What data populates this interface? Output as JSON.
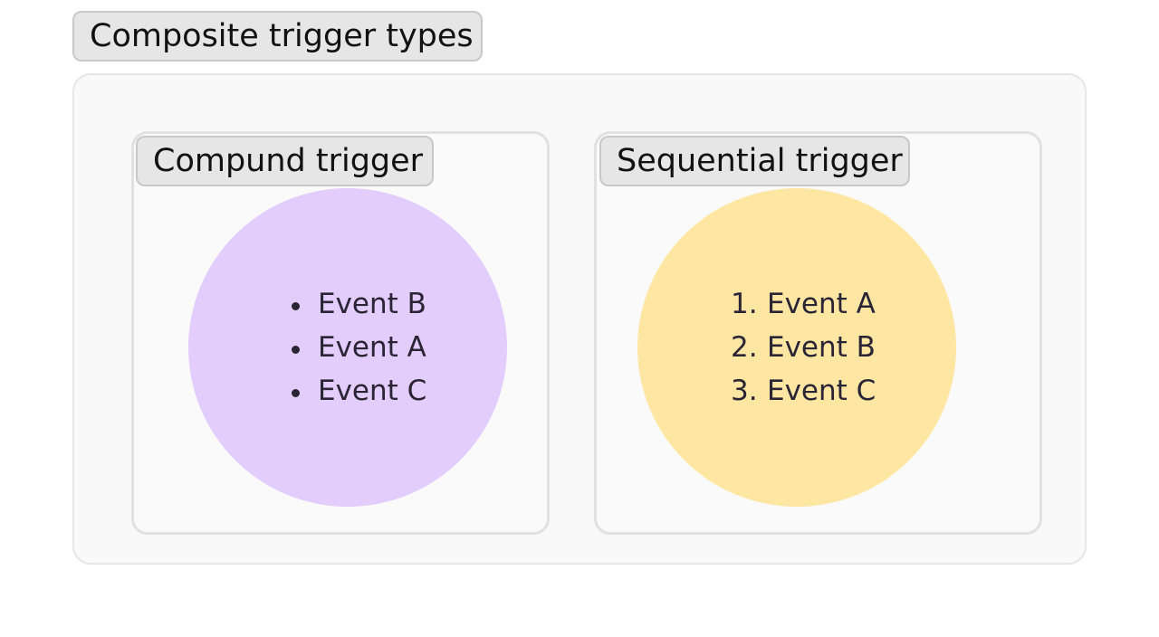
{
  "title": "Composite trigger types",
  "groups": [
    {
      "title": "Compund trigger",
      "list_style": "unordered",
      "circle_color": "#e3cdfd",
      "items": [
        "Event B",
        "Event A",
        "Event C"
      ]
    },
    {
      "title": "Sequential trigger",
      "list_style": "ordered",
      "circle_color": "#ffe6a2",
      "items": [
        "Event A",
        "Event B",
        "Event C"
      ],
      "markers": [
        "1.",
        "2.",
        "3."
      ]
    }
  ]
}
